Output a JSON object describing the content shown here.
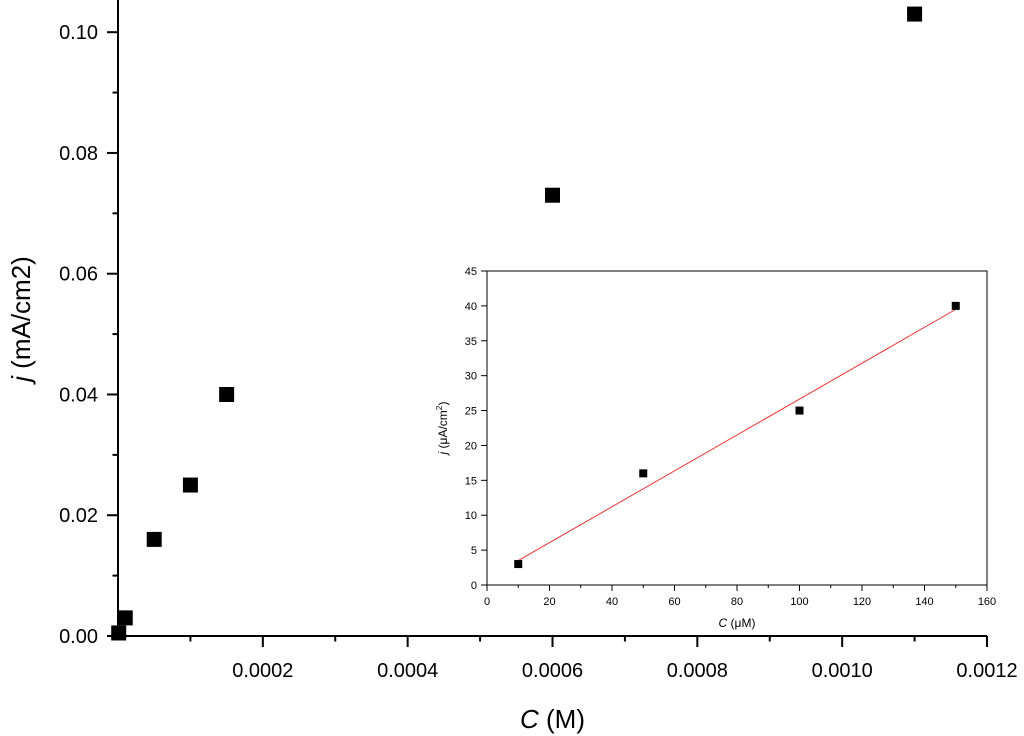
{
  "chart_data": [
    {
      "type": "scatter",
      "xlabel": {
        "var": "C",
        "unit": " (M)"
      },
      "ylabel": {
        "var": "j",
        "unit": " (mA/cm2)"
      },
      "xlim": [
        0,
        0.0012
      ],
      "ylim": [
        0,
        0.105
      ],
      "x_ticks": [
        {
          "value": 0.0002,
          "label": "0.0002"
        },
        {
          "value": 0.0004,
          "label": "0.0004"
        },
        {
          "value": 0.0006,
          "label": "0.0006"
        },
        {
          "value": 0.0008,
          "label": "0.0008"
        },
        {
          "value": 0.001,
          "label": "0.0010"
        },
        {
          "value": 0.0012,
          "label": "0.0012"
        }
      ],
      "y_ticks": [
        {
          "value": 0.0,
          "label": "0.00"
        },
        {
          "value": 0.02,
          "label": "0.02"
        },
        {
          "value": 0.04,
          "label": "0.04"
        },
        {
          "value": 0.06,
          "label": "0.06"
        },
        {
          "value": 0.08,
          "label": "0.08"
        },
        {
          "value": 0.1,
          "label": "0.10"
        }
      ],
      "series": [
        {
          "x": [
            1e-06,
            1e-05,
            5e-05,
            0.0001,
            0.00015,
            0.0006,
            0.0011
          ],
          "y": [
            0.0005,
            0.003,
            0.016,
            0.025,
            0.04,
            0.073,
            0.103
          ]
        }
      ],
      "marker_color": "#000000",
      "grid": false
    },
    {
      "type": "scatter",
      "xlabel": {
        "var": "C",
        "unit": " (μM)"
      },
      "ylabel": {
        "var": "j",
        "unit": " (μA/cm",
        "sup": "2",
        "close": ")"
      },
      "xlim": [
        0,
        160
      ],
      "ylim": [
        0,
        45
      ],
      "x_ticks": [
        {
          "value": 0,
          "label": "0"
        },
        {
          "value": 20,
          "label": "20"
        },
        {
          "value": 40,
          "label": "40"
        },
        {
          "value": 60,
          "label": "60"
        },
        {
          "value": 80,
          "label": "80"
        },
        {
          "value": 100,
          "label": "100"
        },
        {
          "value": 120,
          "label": "120"
        },
        {
          "value": 140,
          "label": "140"
        },
        {
          "value": 160,
          "label": "160"
        }
      ],
      "y_ticks": [
        {
          "value": 0,
          "label": "0"
        },
        {
          "value": 5,
          "label": "5"
        },
        {
          "value": 10,
          "label": "10"
        },
        {
          "value": 15,
          "label": "15"
        },
        {
          "value": 20,
          "label": "20"
        },
        {
          "value": 25,
          "label": "25"
        },
        {
          "value": 30,
          "label": "30"
        },
        {
          "value": 35,
          "label": "35"
        },
        {
          "value": 40,
          "label": "40"
        },
        {
          "value": 45,
          "label": "45"
        }
      ],
      "series": [
        {
          "x": [
            10,
            50,
            100,
            150
          ],
          "y": [
            3,
            16,
            25,
            40
          ]
        }
      ],
      "fit_line": {
        "x": [
          10,
          150
        ],
        "y": [
          3.5,
          39.5
        ],
        "color": "#ee3333"
      },
      "marker_color": "#000000",
      "grid": false
    }
  ]
}
